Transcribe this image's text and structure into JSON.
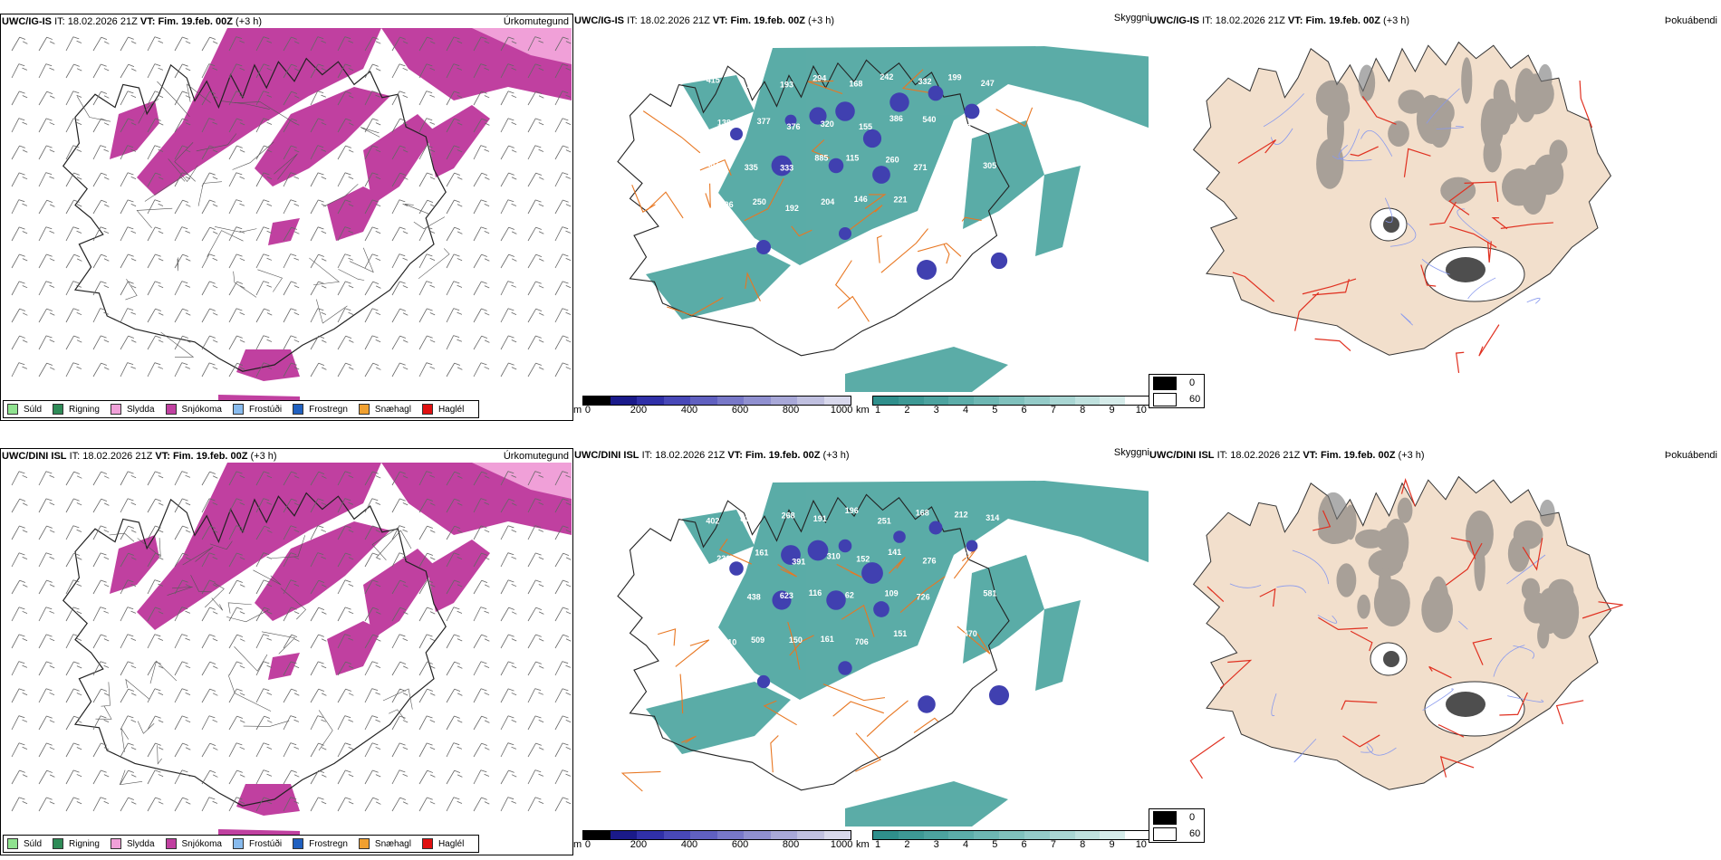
{
  "rows": [
    {
      "model": "UWC/IG-IS",
      "it_label": "IT:",
      "it_value": "18.02.2026 21Z",
      "vt_label": "VT:",
      "vt_value": "Fim. 19.feb. 00Z",
      "lead": "(+3 h)",
      "cloud_labels": [
        {
          "t": "415"
        },
        {
          "t": "269"
        },
        {
          "t": "193"
        },
        {
          "t": "294"
        },
        {
          "t": "168"
        },
        {
          "t": "242"
        },
        {
          "t": "332"
        },
        {
          "t": "199"
        },
        {
          "t": "247"
        },
        {
          "t": "138"
        },
        {
          "t": "377"
        },
        {
          "t": "376"
        },
        {
          "t": "320"
        },
        {
          "t": "155"
        },
        {
          "t": "386"
        },
        {
          "t": "540"
        },
        {
          "t": "250"
        },
        {
          "t": "37"
        },
        {
          "t": "181"
        },
        {
          "t": "335"
        },
        {
          "t": "333"
        },
        {
          "t": "885"
        },
        {
          "t": "115"
        },
        {
          "t": "260"
        },
        {
          "t": "271"
        },
        {
          "t": "325"
        },
        {
          "t": "305"
        },
        {
          "t": "96"
        },
        {
          "t": "250"
        },
        {
          "t": "192"
        },
        {
          "t": "204"
        },
        {
          "t": "146"
        },
        {
          "t": "221"
        },
        {
          "t": "491"
        }
      ]
    },
    {
      "model": "UWC/DINI ISL",
      "it_label": "IT:",
      "it_value": "18.02.2026 21Z",
      "vt_label": "VT:",
      "vt_value": "Fim. 19.feb. 00Z",
      "lead": "(+3 h)",
      "cloud_labels": [
        {
          "t": "402"
        },
        {
          "t": "818"
        },
        {
          "t": "268"
        },
        {
          "t": "191"
        },
        {
          "t": "196"
        },
        {
          "t": "251"
        },
        {
          "t": "168"
        },
        {
          "t": "212"
        },
        {
          "t": "314"
        },
        {
          "t": "231"
        },
        {
          "t": "161"
        },
        {
          "t": "391"
        },
        {
          "t": "310"
        },
        {
          "t": "152"
        },
        {
          "t": "141"
        },
        {
          "t": "276"
        },
        {
          "t": "27"
        },
        {
          "t": "250"
        },
        {
          "t": "350"
        },
        {
          "t": "438"
        },
        {
          "t": "623"
        },
        {
          "t": "116"
        },
        {
          "t": "62"
        },
        {
          "t": "109"
        },
        {
          "t": "726"
        },
        {
          "t": "255"
        },
        {
          "t": "581"
        },
        {
          "t": "210"
        },
        {
          "t": "509"
        },
        {
          "t": "150"
        },
        {
          "t": "161"
        },
        {
          "t": "706"
        },
        {
          "t": "151"
        },
        {
          "t": "206"
        },
        {
          "t": "470"
        }
      ]
    }
  ],
  "titles": {
    "precip": "Úrkomutegund",
    "vis": "Skyggni",
    "fog": "Þokuábendi"
  },
  "precip_legend": [
    {
      "label": "Súld",
      "color": "#8fe28f"
    },
    {
      "label": "Rigning",
      "color": "#2e8b57"
    },
    {
      "label": "Slydda",
      "color": "#f0a0d8"
    },
    {
      "label": "Snjókoma",
      "color": "#c040a0"
    },
    {
      "label": "Frostúði",
      "color": "#88bbee"
    },
    {
      "label": "Frostregn",
      "color": "#2060c0"
    },
    {
      "label": "Snæhagl",
      "color": "#f0a030"
    },
    {
      "label": "Haglél",
      "color": "#e01010"
    }
  ],
  "ceiling_scale": {
    "unit": "m",
    "ticks": [
      "0",
      "200",
      "400",
      "600",
      "800",
      "1000"
    ],
    "colors": [
      "#000000",
      "#1a1a8a",
      "#3030a8",
      "#4848b8",
      "#6060c0",
      "#7878c8",
      "#9090d0",
      "#a8a8d8",
      "#c0c0e0",
      "#d8d8ec"
    ]
  },
  "visibility_scale": {
    "unit": "km",
    "ticks": [
      "1",
      "2",
      "3",
      "4",
      "5",
      "6",
      "7",
      "8",
      "9",
      "10"
    ],
    "colors": [
      "#2f8f8c",
      "#3d9995",
      "#4ca39f",
      "#5cada9",
      "#6db7b3",
      "#80c1bd",
      "#94cbc8",
      "#a9d6d3",
      "#bfe1de",
      "#d6ecea",
      "#ffffff"
    ]
  },
  "fog_legend": [
    {
      "label": "0",
      "color": "#000000"
    },
    {
      "label": "60",
      "color": "#ffffff"
    }
  ],
  "colors": {
    "snow": "#c040a0",
    "sleet": "#f0a0d8",
    "teal": "#3e9e98",
    "land": "#f2dfcc",
    "road": "#e87722",
    "river": "#8899ee",
    "redroad": "#e03020"
  }
}
